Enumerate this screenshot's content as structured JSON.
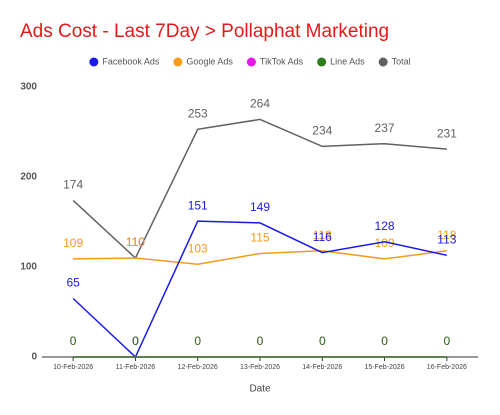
{
  "chart_data": {
    "type": "line",
    "title": "Ads Cost - Last 7Day > Pollaphat Marketing",
    "x_label": "Date",
    "categories": [
      "10-Feb-2026",
      "11-Feb-2026",
      "12-Feb-2026",
      "13-Feb-2026",
      "14-Feb-2026",
      "15-Feb-2026",
      "16-Feb-2026"
    ],
    "series": [
      {
        "name": "Facebook Ads",
        "color": "#1a1ae6",
        "values": [
          65,
          0,
          151,
          149,
          116,
          128,
          113
        ]
      },
      {
        "name": "Google Ads",
        "color": "#f59c1a",
        "values": [
          109,
          110,
          103,
          115,
          118,
          109,
          118
        ]
      },
      {
        "name": "TikTok Ads",
        "color": "#e619e6",
        "values": [
          0,
          0,
          0,
          0,
          0,
          0,
          0
        ]
      },
      {
        "name": "Line Ads",
        "color": "#2e7d1a",
        "values": [
          0,
          0,
          0,
          0,
          0,
          0,
          0
        ]
      },
      {
        "name": "Total",
        "color": "#616161",
        "values": [
          174,
          110,
          253,
          264,
          234,
          237,
          231
        ]
      }
    ],
    "draw_order": [
      4,
      1,
      0,
      2,
      3
    ],
    "ylim": [
      0,
      300
    ],
    "yticks": [
      0,
      100,
      200,
      300
    ],
    "grid": false
  }
}
